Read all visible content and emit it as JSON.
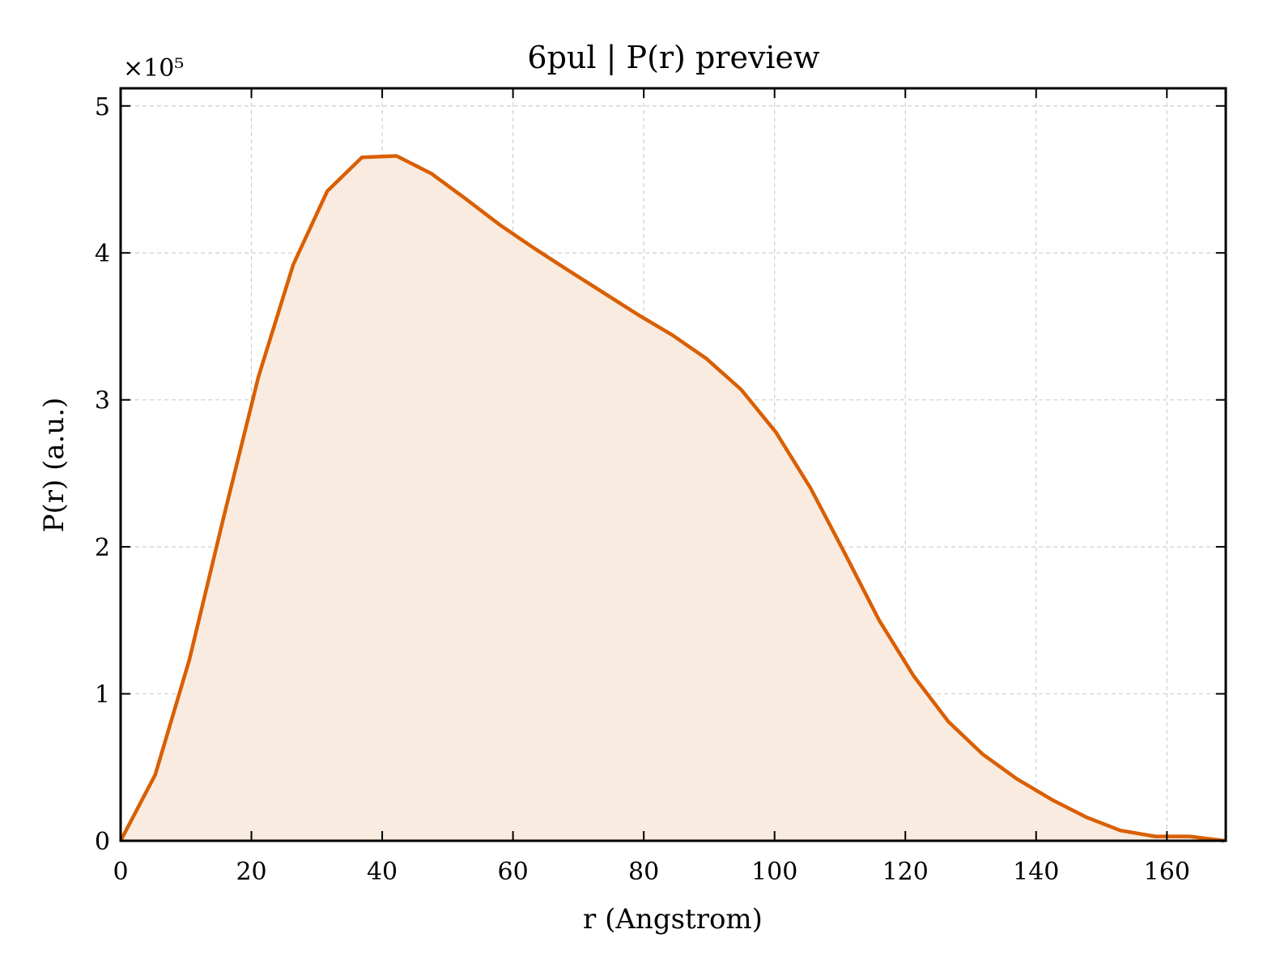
{
  "chart_data": {
    "type": "area",
    "title": "6pul | P(r) preview",
    "xlabel": "r (Angstrom)",
    "ylabel": "P(r) (a.u.)",
    "y_multiplier_label": "×10⁵",
    "y_scale": 100000,
    "xlim": [
      0,
      169
    ],
    "ylim": [
      0,
      5.12
    ],
    "x_ticks": [
      0,
      20,
      40,
      60,
      80,
      100,
      120,
      140,
      160
    ],
    "y_ticks": [
      0,
      1,
      2,
      3,
      4,
      5
    ],
    "grid": true,
    "line_color": "#d95f02",
    "fill_color": "#f9ebe0",
    "series": [
      {
        "x": [
          0,
          5.3,
          10.5,
          15.8,
          21.1,
          26.4,
          31.6,
          36.9,
          42.2,
          47.5,
          52.7,
          58.0,
          63.3,
          68.5,
          73.8,
          79.1,
          84.4,
          89.6,
          94.9,
          100.2,
          105.5,
          110.7,
          116.0,
          121.3,
          126.6,
          131.8,
          137.1,
          142.4,
          147.7,
          152.9,
          158.2,
          163.5,
          168.8
        ],
        "y": [
          0.0,
          0.45,
          1.23,
          2.21,
          3.16,
          3.92,
          4.42,
          4.65,
          4.66,
          4.54,
          4.37,
          4.19,
          4.03,
          3.88,
          3.73,
          3.58,
          3.44,
          3.28,
          3.07,
          2.78,
          2.4,
          1.96,
          1.5,
          1.12,
          0.81,
          0.59,
          0.42,
          0.28,
          0.16,
          0.07,
          0.03,
          0.03,
          0.0
        ]
      }
    ]
  }
}
